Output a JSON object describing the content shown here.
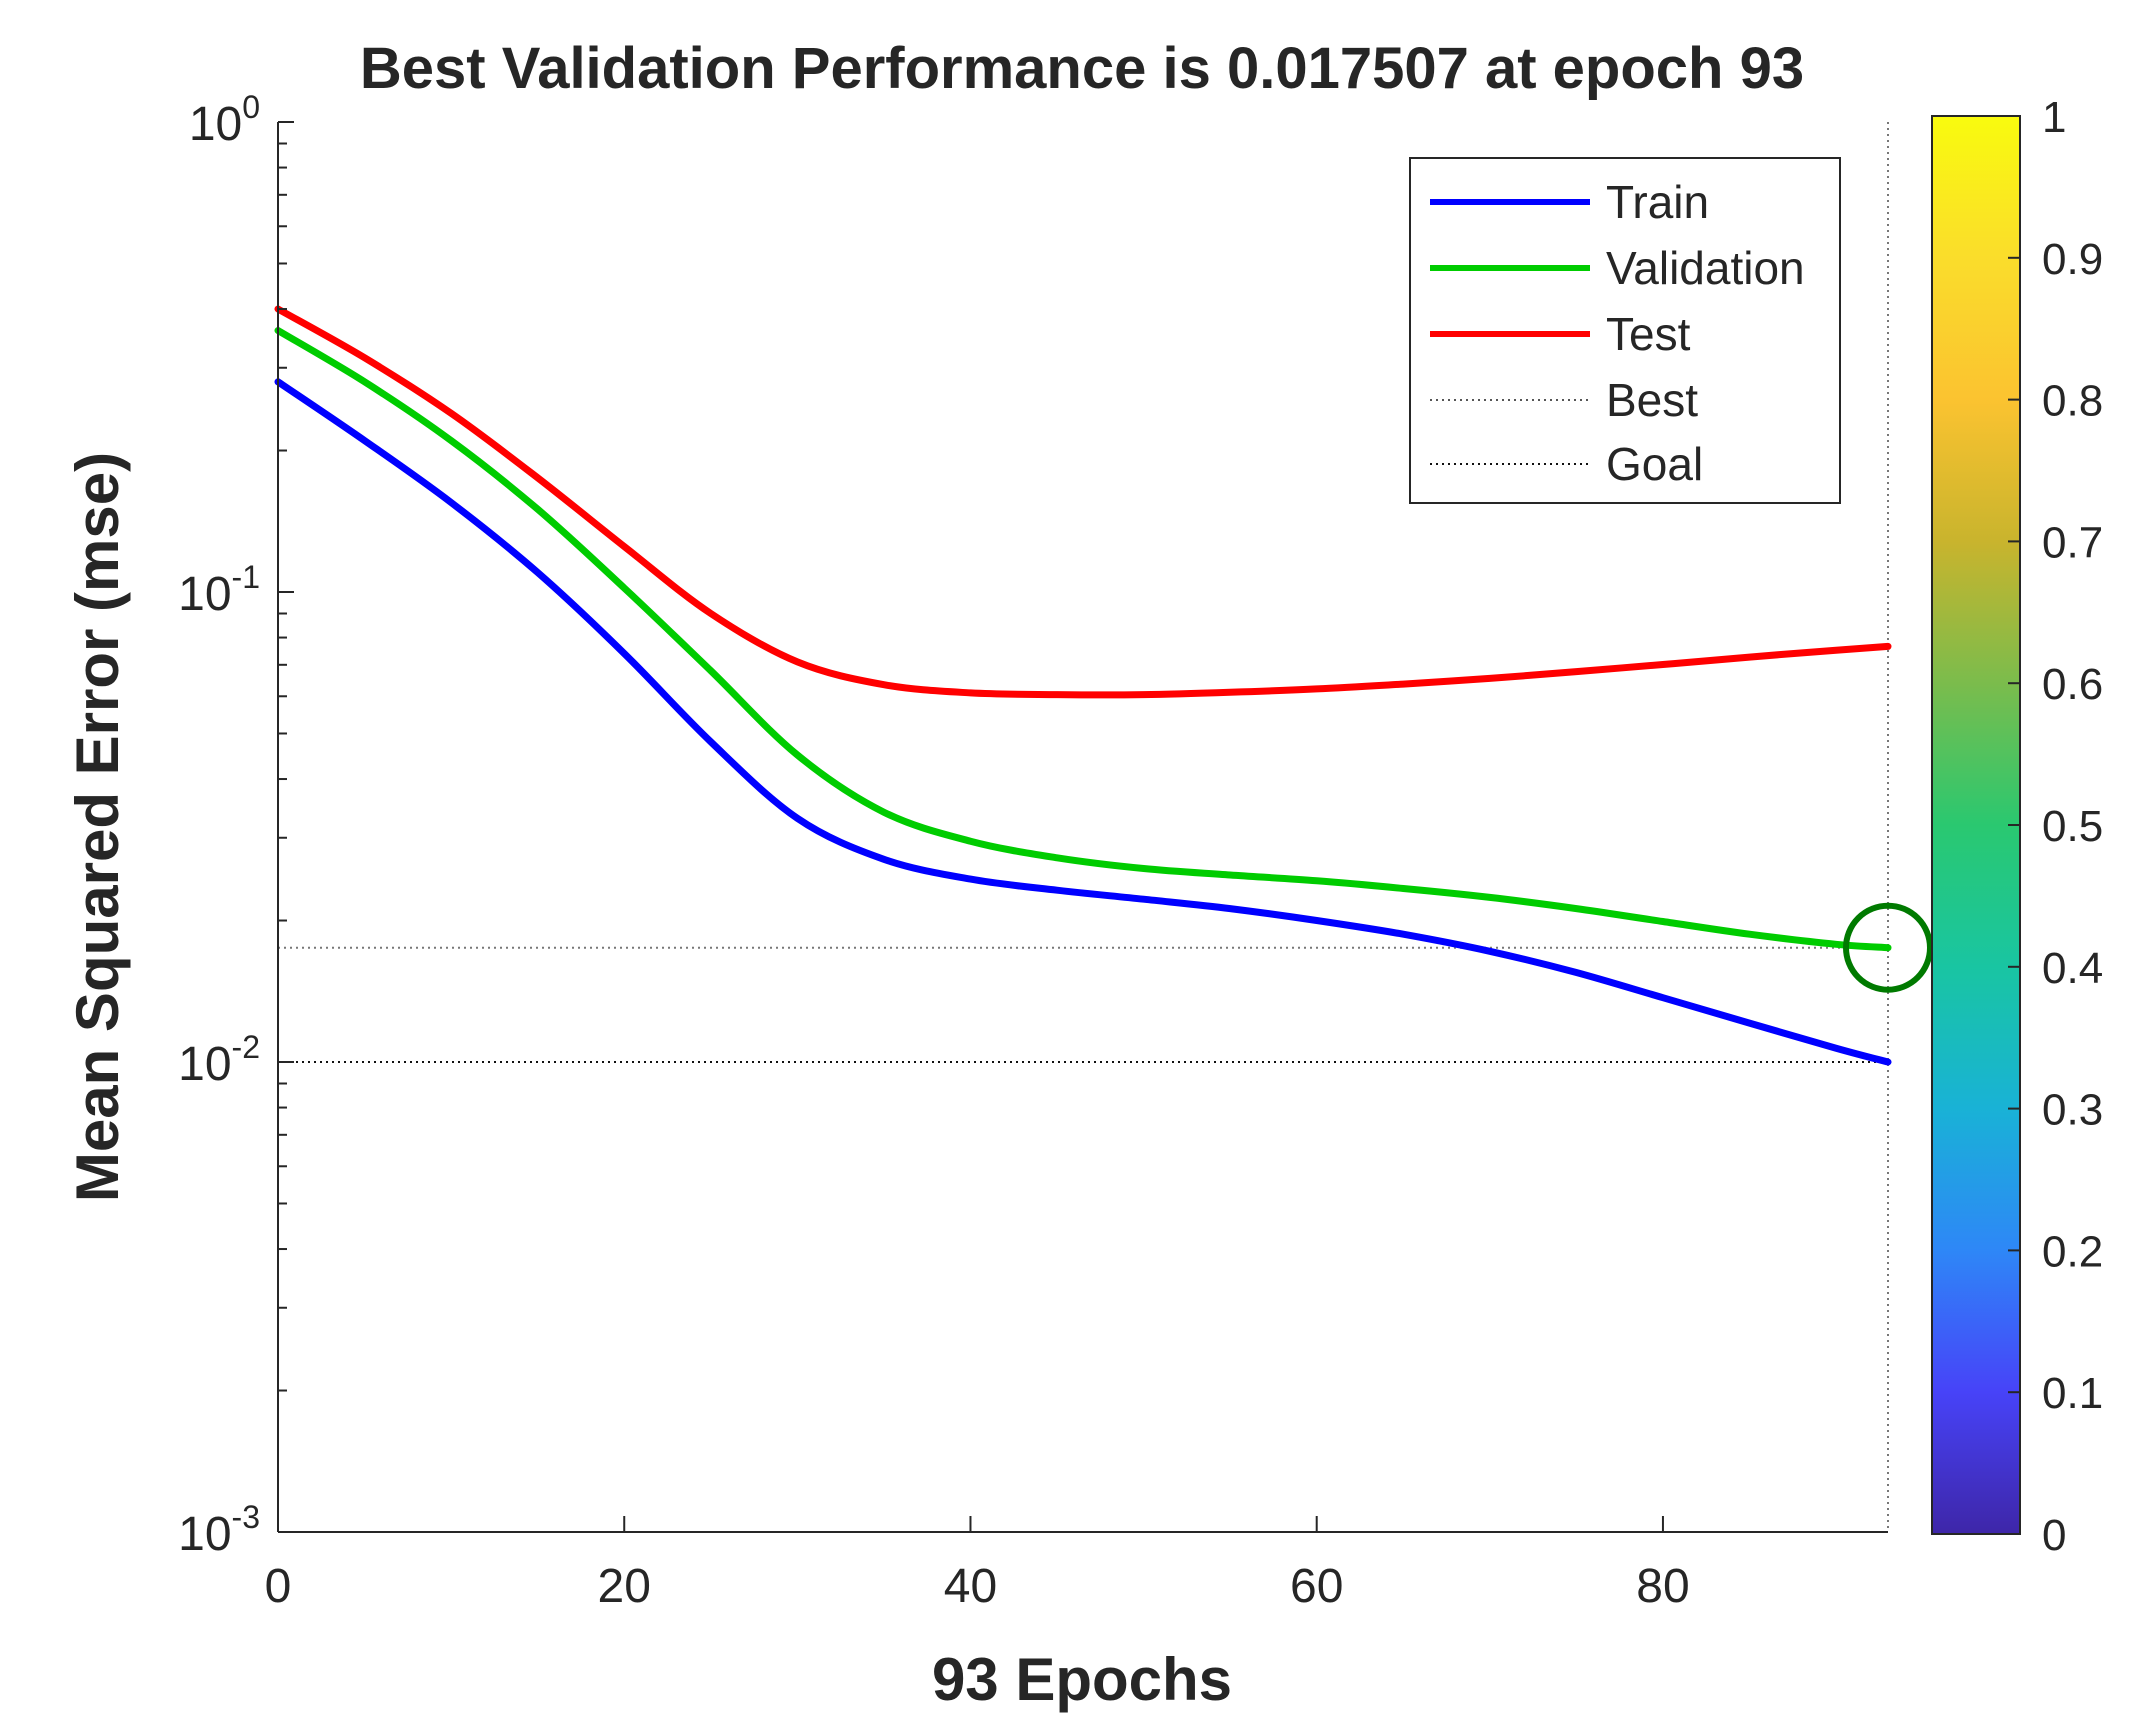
{
  "chart_data": {
    "type": "line",
    "title": "Best Validation Performance is 0.017507 at epoch 93",
    "xlabel": "93 Epochs",
    "ylabel": "Mean Squared Error  (mse)",
    "yscale": "log",
    "xlim": [
      0,
      93
    ],
    "ylim": [
      0.001,
      1
    ],
    "x_ticks": [
      {
        "value": 0,
        "label": "0"
      },
      {
        "value": 20,
        "label": "20"
      },
      {
        "value": 40,
        "label": "40"
      },
      {
        "value": 60,
        "label": "60"
      },
      {
        "value": 80,
        "label": "80"
      }
    ],
    "y_ticks": [
      {
        "value": 1,
        "base": "10",
        "exp": "0"
      },
      {
        "value": 0.1,
        "base": "10",
        "exp": "-1"
      },
      {
        "value": 0.01,
        "base": "10",
        "exp": "-2"
      },
      {
        "value": 0.001,
        "base": "10",
        "exp": "-3"
      }
    ],
    "x": [
      0,
      5,
      10,
      15,
      20,
      25,
      30,
      35,
      40,
      45,
      50,
      55,
      60,
      65,
      70,
      75,
      80,
      85,
      90,
      93
    ],
    "series": [
      {
        "name": "Train",
        "color": "#0000ff",
        "values": [
          0.28,
          0.21,
          0.155,
          0.11,
          0.074,
          0.048,
          0.033,
          0.027,
          0.0245,
          0.0232,
          0.0222,
          0.0212,
          0.02,
          0.0187,
          0.0172,
          0.0155,
          0.0137,
          0.0121,
          0.0107,
          0.01
        ]
      },
      {
        "name": "Validation",
        "color": "#00cc00",
        "values": [
          0.36,
          0.28,
          0.21,
          0.15,
          0.102,
          0.068,
          0.045,
          0.034,
          0.0295,
          0.0272,
          0.0258,
          0.025,
          0.0243,
          0.0234,
          0.0224,
          0.0212,
          0.0199,
          0.0187,
          0.0178,
          0.017507
        ]
      },
      {
        "name": "Test",
        "color": "#ff0000",
        "values": [
          0.4,
          0.315,
          0.24,
          0.175,
          0.125,
          0.09,
          0.071,
          0.0635,
          0.061,
          0.0605,
          0.0605,
          0.0612,
          0.0622,
          0.0637,
          0.0655,
          0.0677,
          0.0701,
          0.0727,
          0.0752,
          0.0766
        ]
      }
    ],
    "best": {
      "epoch": 93,
      "value": 0.017507,
      "label": "Best",
      "marker_color": "#007a00"
    },
    "goal": {
      "value": 0.01,
      "label": "Goal"
    },
    "legend_position": "top-right",
    "colorbar": {
      "ticks": [
        "0",
        "0.1",
        "0.2",
        "0.3",
        "0.4",
        "0.5",
        "0.6",
        "0.7",
        "0.8",
        "0.9",
        "1"
      ],
      "range": [
        0,
        1
      ],
      "colormap": [
        "#3e26a8",
        "#4743f8",
        "#2e87f7",
        "#19b2d6",
        "#19c5a2",
        "#2ac870",
        "#7bbc4c",
        "#c9b42d",
        "#fbc330",
        "#fadd2b",
        "#f9fb0e"
      ]
    }
  }
}
